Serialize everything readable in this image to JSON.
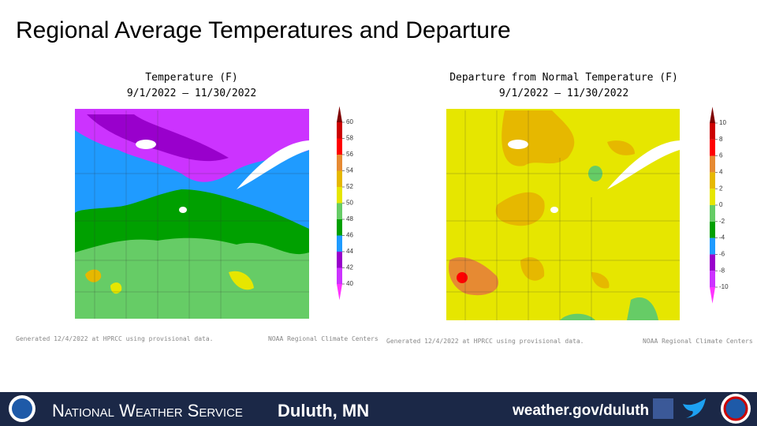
{
  "title": "Regional Average Temperatures and Departure",
  "maps": [
    {
      "title": "Temperature (F)",
      "period": "9/1/2022 – 11/30/2022",
      "colorbar": {
        "ticks": [
          60,
          58,
          56,
          54,
          52,
          50,
          48,
          46,
          44,
          42,
          40
        ],
        "colors": [
          "#ff33ff",
          "#cc33ff",
          "#9900cc",
          "#1f9bff",
          "#00a000",
          "#66cc66",
          "#e6e600",
          "#e6b800",
          "#e68a33",
          "#ff0000",
          "#cc0000",
          "#800000"
        ]
      },
      "note": "Generated 12/4/2022 at HPRCC using provisional data.",
      "credit": "NOAA Regional Climate Centers"
    },
    {
      "title": "Departure from Normal Temperature (F)",
      "period": "9/1/2022 – 11/30/2022",
      "colorbar": {
        "ticks": [
          10,
          8,
          6,
          4,
          2,
          0,
          -2,
          -4,
          -6,
          -8,
          -10
        ],
        "colors": [
          "#ff33ff",
          "#cc33ff",
          "#9900cc",
          "#1f9bff",
          "#00a000",
          "#66cc66",
          "#e6e600",
          "#e6b800",
          "#e68a33",
          "#ff0000",
          "#cc0000",
          "#800000"
        ]
      },
      "note": "Generated 12/4/2022 at HPRCC using provisional data.",
      "credit": "NOAA Regional Climate Centers"
    }
  ],
  "footer": {
    "agency": "National Weather Service",
    "office": "Duluth, MN",
    "url": "weather.gov/duluth"
  }
}
